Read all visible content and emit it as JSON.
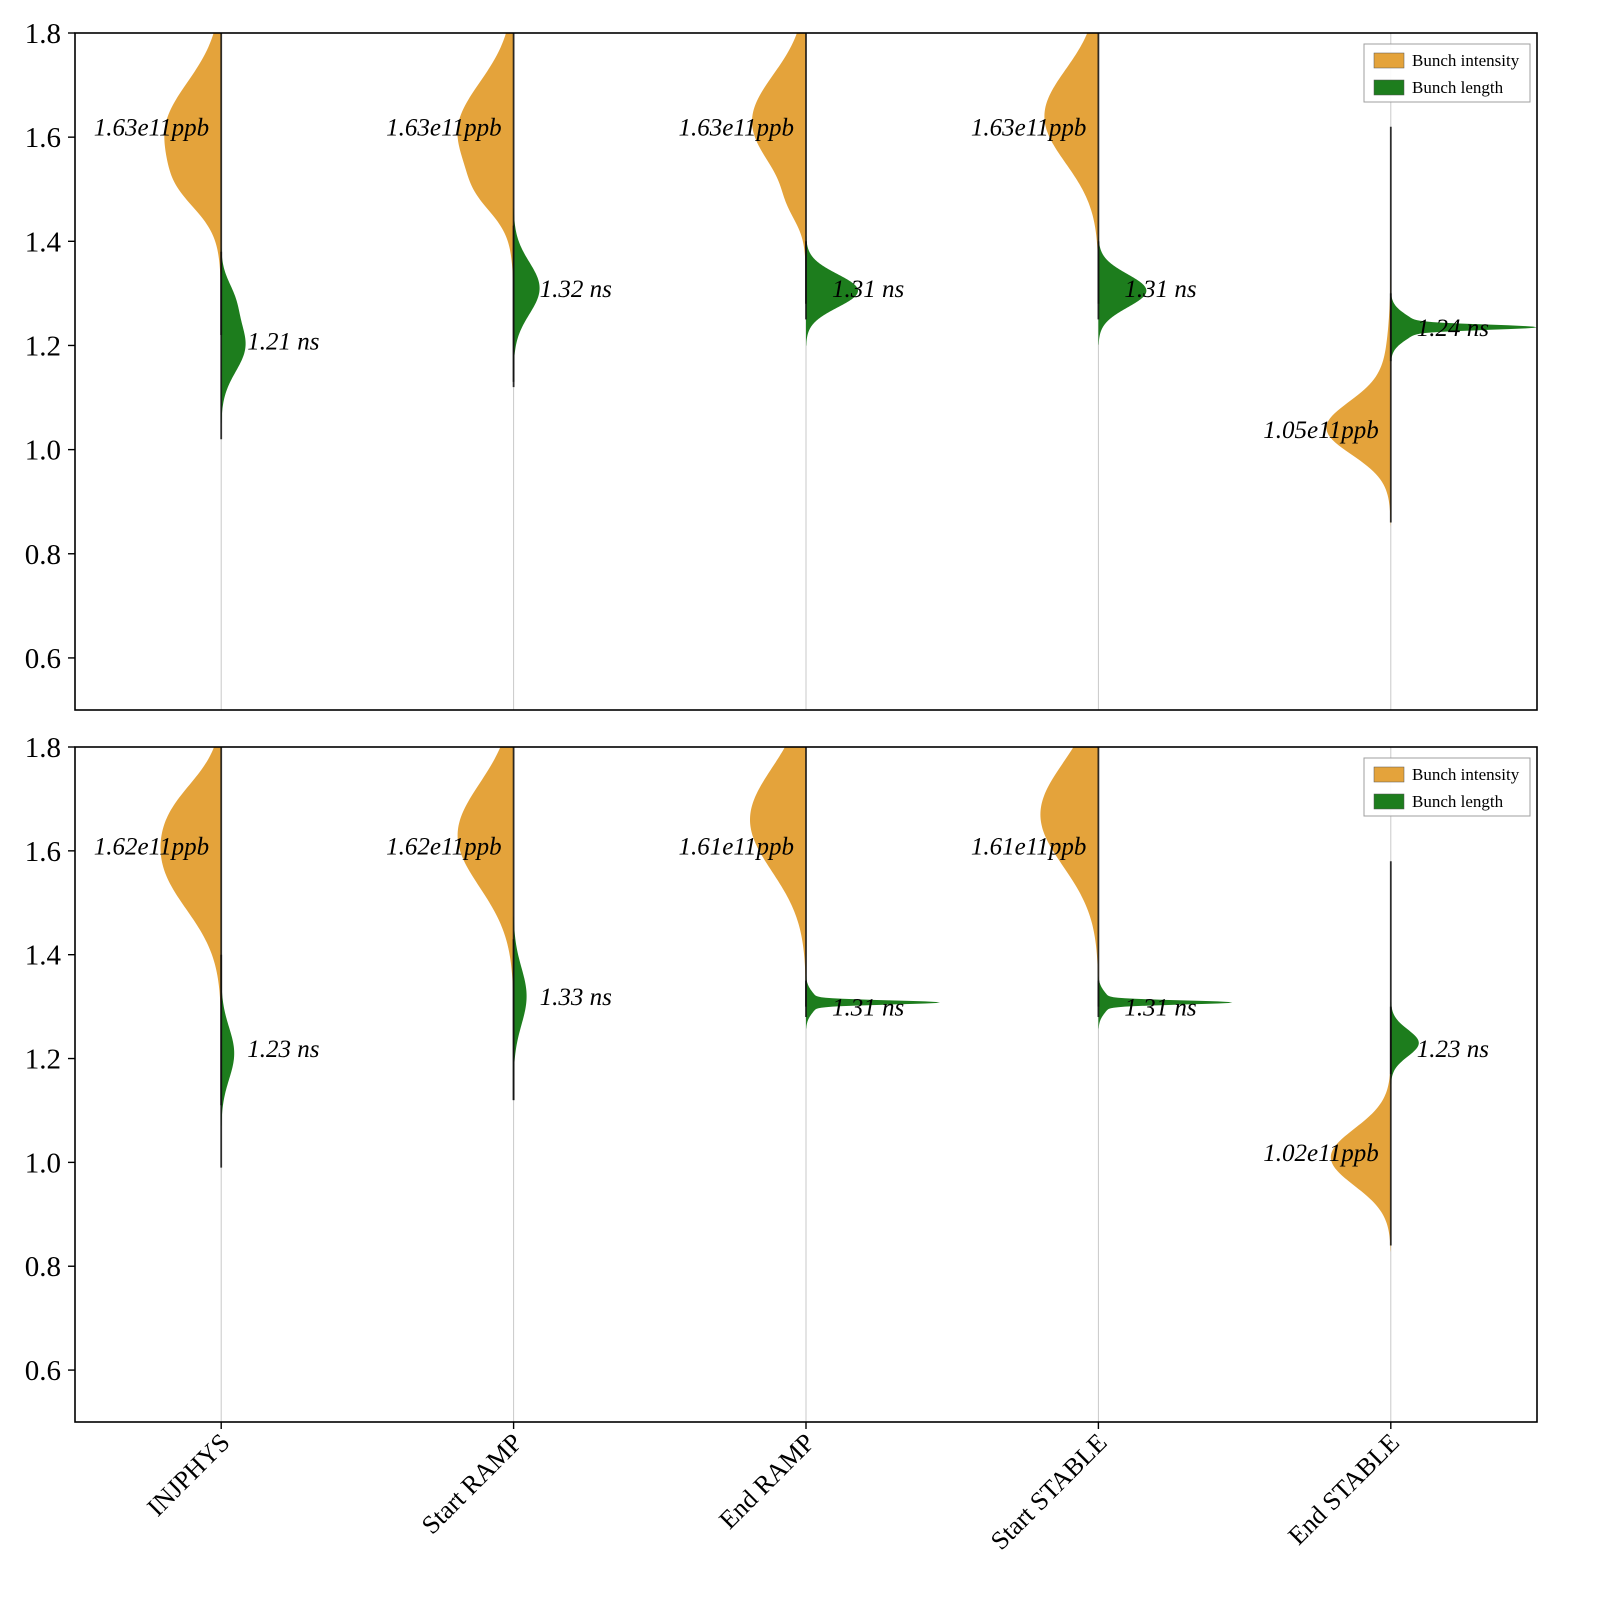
{
  "colors": {
    "intensity": "#E4A33B",
    "length": "#1D7D1D",
    "grid": "#c9c9c9",
    "axis": "#000000",
    "spine": "#111111",
    "background": "#ffffff"
  },
  "legend": {
    "items": [
      {
        "label": "Bunch intensity",
        "color_key": "intensity"
      },
      {
        "label": "Bunch length",
        "color_key": "length"
      }
    ]
  },
  "chart_data": [
    {
      "type": "violin",
      "panel": "top",
      "categories": [
        "INJPHYS",
        "Start RAMP",
        "End RAMP",
        "Start STABLE",
        "End STABLE"
      ],
      "ylim": [
        0.5,
        1.8
      ],
      "yticks": [
        0.6,
        0.8,
        1.0,
        1.2,
        1.4,
        1.6,
        1.8
      ],
      "grid": "vertical",
      "legend_position": "upper right",
      "legend": [
        "Bunch intensity",
        "Bunch length"
      ],
      "series": [
        {
          "name": "Bunch intensity",
          "unit": "1e11 ppb",
          "side": "left",
          "means": [
            1.63,
            1.63,
            1.63,
            1.63,
            1.05
          ],
          "violins": [
            {
              "annotation": "1.63e11ppb",
              "annotation_y": 1.62,
              "components": [
                [
                  1.61,
                  0.095,
                  56
                ],
                [
                  1.5,
                  0.045,
                  14
                ]
              ],
              "spine": [
                1.22,
                1.8
              ]
            },
            {
              "annotation": "1.63e11ppb",
              "annotation_y": 1.62,
              "components": [
                [
                  1.61,
                  0.095,
                  56
                ],
                [
                  1.49,
                  0.04,
                  12
                ]
              ],
              "spine": [
                1.13,
                1.8
              ]
            },
            {
              "annotation": "1.63e11ppb",
              "annotation_y": 1.62,
              "components": [
                [
                  1.63,
                  0.09,
                  54
                ],
                [
                  1.47,
                  0.035,
                  8
                ]
              ],
              "spine": [
                1.28,
                1.8
              ]
            },
            {
              "annotation": "1.63e11ppb",
              "annotation_y": 1.62,
              "components": [
                [
                  1.64,
                  0.09,
                  54
                ]
              ],
              "spine": [
                1.28,
                1.8
              ]
            },
            {
              "annotation": "1.05e11ppb",
              "annotation_y": 1.04,
              "components": [
                [
                  1.04,
                  0.05,
                  58
                ],
                [
                  1.1,
                  0.09,
                  8
                ]
              ],
              "spine": [
                0.86,
                1.62
              ]
            }
          ]
        },
        {
          "name": "Bunch length",
          "unit": "ns",
          "side": "right",
          "means": [
            1.21,
            1.32,
            1.31,
            1.31,
            1.24
          ],
          "violins": [
            {
              "annotation": "1.21 ns",
              "annotation_y": 1.21,
              "components": [
                [
                  1.2,
                  0.05,
                  24
                ],
                [
                  1.29,
                  0.035,
                  10
                ]
              ],
              "spine": [
                1.02,
                1.38
              ]
            },
            {
              "annotation": "1.32 ns",
              "annotation_y": 1.31,
              "components": [
                [
                  1.31,
                  0.05,
                  26
                ]
              ],
              "spine": [
                1.12,
                1.43
              ]
            },
            {
              "annotation": "1.31 ns",
              "annotation_y": 1.31,
              "components": [
                [
                  1.305,
                  0.032,
                  52
                ]
              ],
              "spine": [
                1.25,
                1.4
              ]
            },
            {
              "annotation": "1.31 ns",
              "annotation_y": 1.31,
              "components": [
                [
                  1.305,
                  0.032,
                  48
                ]
              ],
              "spine": [
                1.25,
                1.4
              ]
            },
            {
              "annotation": "1.24 ns",
              "annotation_y": 1.235,
              "components": [
                [
                  1.235,
                  0.022,
                  28
                ],
                [
                  1.235,
                  0.005,
                  118
                ]
              ],
              "spine": [
                1.17,
                1.3
              ]
            }
          ]
        }
      ]
    },
    {
      "type": "violin",
      "panel": "bottom",
      "categories": [
        "INJPHYS",
        "Start RAMP",
        "End RAMP",
        "Start STABLE",
        "End STABLE"
      ],
      "ylim": [
        0.5,
        1.8
      ],
      "yticks": [
        0.6,
        0.8,
        1.0,
        1.2,
        1.4,
        1.6,
        1.8
      ],
      "grid": "vertical",
      "legend_position": "upper right",
      "legend": [
        "Bunch intensity",
        "Bunch length"
      ],
      "series": [
        {
          "name": "Bunch intensity",
          "unit": "1e11 ppb",
          "side": "left",
          "means": [
            1.62,
            1.62,
            1.61,
            1.61,
            1.02
          ],
          "violins": [
            {
              "annotation": "1.62e11ppb",
              "annotation_y": 1.61,
              "components": [
                [
                  1.58,
                  0.095,
                  56
                ],
                [
                  1.69,
                  0.06,
                  18
                ]
              ],
              "spine": [
                1.11,
                1.8
              ]
            },
            {
              "annotation": "1.62e11ppb",
              "annotation_y": 1.61,
              "components": [
                [
                  1.63,
                  0.1,
                  56
                ]
              ],
              "spine": [
                1.12,
                1.8
              ]
            },
            {
              "annotation": "1.61e11ppb",
              "annotation_y": 1.61,
              "components": [
                [
                  1.66,
                  0.1,
                  56
                ]
              ],
              "spine": [
                1.3,
                1.8
              ]
            },
            {
              "annotation": "1.61e11ppb",
              "annotation_y": 1.61,
              "components": [
                [
                  1.67,
                  0.1,
                  58
                ]
              ],
              "spine": [
                1.3,
                1.8
              ]
            },
            {
              "annotation": "1.02e11ppb",
              "annotation_y": 1.02,
              "components": [
                [
                  1.01,
                  0.055,
                  60
                ]
              ],
              "spine": [
                0.84,
                1.58
              ]
            }
          ]
        },
        {
          "name": "Bunch length",
          "unit": "ns",
          "side": "right",
          "means": [
            1.23,
            1.33,
            1.31,
            1.31,
            1.23
          ],
          "violins": [
            {
              "annotation": "1.23 ns",
              "annotation_y": 1.22,
              "components": [
                [
                  1.21,
                  0.05,
                  13
                ]
              ],
              "spine": [
                0.99,
                1.4
              ]
            },
            {
              "annotation": "1.33 ns",
              "annotation_y": 1.32,
              "components": [
                [
                  1.32,
                  0.055,
                  13
                ]
              ],
              "spine": [
                1.12,
                1.43
              ]
            },
            {
              "annotation": "1.31 ns",
              "annotation_y": 1.3,
              "components": [
                [
                  1.308,
                  0.018,
                  12
                ],
                [
                  1.308,
                  0.004,
                  122
                ]
              ],
              "spine": [
                1.28,
                1.35
              ]
            },
            {
              "annotation": "1.31 ns",
              "annotation_y": 1.3,
              "components": [
                [
                  1.308,
                  0.018,
                  12
                ],
                [
                  1.308,
                  0.004,
                  122
                ]
              ],
              "spine": [
                1.28,
                1.35
              ]
            },
            {
              "annotation": "1.23 ns",
              "annotation_y": 1.22,
              "components": [
                [
                  1.23,
                  0.026,
                  28
                ]
              ],
              "spine": [
                1.17,
                1.3
              ]
            }
          ]
        }
      ]
    }
  ]
}
